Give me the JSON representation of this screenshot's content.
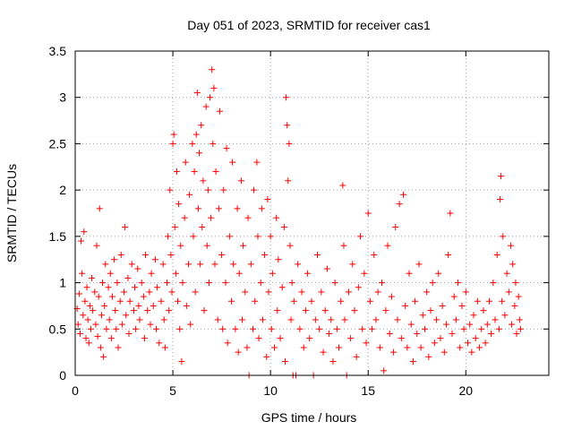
{
  "chart_data": {
    "type": "scatter",
    "title": "Day 051 of 2023, SRMTID for receiver cas1",
    "xlabel": "GPS time / hours",
    "ylabel": "SRMTID / TECUs",
    "xlim": [
      0,
      24.25
    ],
    "ylim": [
      0,
      3.5
    ],
    "xticks": [
      0,
      5,
      10,
      15,
      20
    ],
    "xtick_labels": [
      "0",
      "5",
      "10",
      "15",
      "20"
    ],
    "yticks": [
      0,
      0.5,
      1,
      1.5,
      2,
      2.5,
      3,
      3.5
    ],
    "ytick_labels": [
      "0",
      "0.5",
      "1",
      "1.5",
      "2",
      "2.5",
      "3",
      "3.5"
    ],
    "grid": true,
    "marker": "+",
    "color": "#ff0000",
    "series": [
      {
        "name": "SRMTID",
        "points": [
          [
            0.1,
            0.72
          ],
          [
            0.15,
            0.55
          ],
          [
            0.2,
            0.88
          ],
          [
            0.25,
            0.45
          ],
          [
            0.3,
            1.45
          ],
          [
            0.35,
            1.1
          ],
          [
            0.4,
            0.65
          ],
          [
            0.45,
            1.55
          ],
          [
            0.5,
            0.8
          ],
          [
            0.55,
            0.4
          ],
          [
            0.6,
            0.95
          ],
          [
            0.65,
            0.6
          ],
          [
            0.7,
            0.35
          ],
          [
            0.75,
            0.75
          ],
          [
            0.8,
            0.5
          ],
          [
            0.85,
            1.05
          ],
          [
            0.9,
            0.7
          ],
          [
            1.0,
            0.9
          ],
          [
            1.05,
            0.55
          ],
          [
            1.1,
            1.4
          ],
          [
            1.15,
            0.42
          ],
          [
            1.2,
            0.85
          ],
          [
            1.25,
            1.8
          ],
          [
            1.3,
            0.3
          ],
          [
            1.35,
            0.65
          ],
          [
            1.4,
            1.0
          ],
          [
            1.45,
            0.2
          ],
          [
            1.5,
            0.75
          ],
          [
            1.55,
            1.2
          ],
          [
            1.6,
            0.5
          ],
          [
            1.7,
            0.95
          ],
          [
            1.75,
            0.6
          ],
          [
            1.8,
            1.1
          ],
          [
            1.85,
            0.4
          ],
          [
            1.9,
            0.85
          ],
          [
            2.0,
            1.25
          ],
          [
            2.05,
            0.7
          ],
          [
            2.1,
            0.5
          ],
          [
            2.15,
            1.0
          ],
          [
            2.2,
            0.3
          ],
          [
            2.3,
            0.8
          ],
          [
            2.35,
            1.3
          ],
          [
            2.4,
            0.55
          ],
          [
            2.5,
            0.9
          ],
          [
            2.55,
            1.6
          ],
          [
            2.6,
            0.65
          ],
          [
            2.7,
            1.05
          ],
          [
            2.75,
            0.45
          ],
          [
            2.8,
            0.8
          ],
          [
            2.9,
            1.2
          ],
          [
            3.0,
            0.7
          ],
          [
            3.05,
            0.95
          ],
          [
            3.1,
            0.5
          ],
          [
            3.2,
            1.15
          ],
          [
            3.25,
            0.75
          ],
          [
            3.3,
            0.6
          ],
          [
            3.4,
            1.0
          ],
          [
            3.5,
            0.85
          ],
          [
            3.55,
            0.4
          ],
          [
            3.6,
            1.3
          ],
          [
            3.7,
            0.7
          ],
          [
            3.8,
            0.9
          ],
          [
            3.85,
            0.55
          ],
          [
            3.9,
            1.1
          ],
          [
            4.0,
            0.75
          ],
          [
            4.1,
            1.25
          ],
          [
            4.15,
            0.5
          ],
          [
            4.2,
            0.95
          ],
          [
            4.3,
            0.35
          ],
          [
            4.4,
            0.8
          ],
          [
            4.5,
            1.2
          ],
          [
            4.55,
            0.6
          ],
          [
            4.6,
            0.3
          ],
          [
            4.7,
            1.0
          ],
          [
            4.75,
            1.5
          ],
          [
            4.8,
            0.7
          ],
          [
            4.85,
            2.0
          ],
          [
            4.9,
            1.3
          ],
          [
            4.95,
            0.9
          ],
          [
            5.0,
            2.5
          ],
          [
            5.05,
            2.6
          ],
          [
            5.1,
            1.6
          ],
          [
            5.15,
            1.1
          ],
          [
            5.2,
            2.2
          ],
          [
            5.25,
            0.8
          ],
          [
            5.3,
            1.85
          ],
          [
            5.35,
            0.5
          ],
          [
            5.4,
            1.4
          ],
          [
            5.45,
            0.15
          ],
          [
            5.5,
            1.0
          ],
          [
            5.6,
            1.7
          ],
          [
            5.65,
            2.3
          ],
          [
            5.7,
            0.75
          ],
          [
            5.8,
            1.2
          ],
          [
            5.85,
            1.95
          ],
          [
            5.9,
            0.55
          ],
          [
            6.0,
            2.5
          ],
          [
            6.05,
            1.5
          ],
          [
            6.1,
            2.2
          ],
          [
            6.15,
            0.9
          ],
          [
            6.2,
            2.6
          ],
          [
            6.25,
            3.05
          ],
          [
            6.3,
            1.8
          ],
          [
            6.35,
            2.4
          ],
          [
            6.4,
            1.2
          ],
          [
            6.45,
            2.7
          ],
          [
            6.5,
            1.6
          ],
          [
            6.55,
            2.1
          ],
          [
            6.6,
            0.7
          ],
          [
            6.7,
            2.9
          ],
          [
            6.75,
            1.4
          ],
          [
            6.8,
            2.0
          ],
          [
            6.85,
            1.0
          ],
          [
            6.9,
            3.0
          ],
          [
            6.95,
            1.7
          ],
          [
            7.0,
            3.3
          ],
          [
            7.05,
            2.5
          ],
          [
            7.1,
            3.1
          ],
          [
            7.15,
            1.2
          ],
          [
            7.2,
            2.2
          ],
          [
            7.3,
            0.6
          ],
          [
            7.35,
            1.8
          ],
          [
            7.4,
            2.85
          ],
          [
            7.5,
            1.3
          ],
          [
            7.55,
            0.5
          ],
          [
            7.6,
            2.0
          ],
          [
            7.7,
            1.0
          ],
          [
            7.75,
            2.45
          ],
          [
            7.8,
            0.35
          ],
          [
            7.9,
            1.5
          ],
          [
            8.0,
            0.8
          ],
          [
            8.05,
            2.3
          ],
          [
            8.1,
            1.2
          ],
          [
            8.2,
            0.5
          ],
          [
            8.3,
            1.8
          ],
          [
            8.35,
            0.25
          ],
          [
            8.4,
            1.1
          ],
          [
            8.5,
            2.1
          ],
          [
            8.55,
            0.6
          ],
          [
            8.6,
            1.4
          ],
          [
            8.7,
            0.9
          ],
          [
            8.8,
            0.3
          ],
          [
            8.85,
            1.7
          ],
          [
            8.9,
            0.0
          ],
          [
            9.0,
            1.2
          ],
          [
            9.1,
            0.5
          ],
          [
            9.15,
            2.0
          ],
          [
            9.2,
            0.8
          ],
          [
            9.3,
            2.3
          ],
          [
            9.35,
            1.5
          ],
          [
            9.4,
            0.4
          ],
          [
            9.5,
            1.0
          ],
          [
            9.55,
            1.8
          ],
          [
            9.6,
            0.6
          ],
          [
            9.7,
            1.3
          ],
          [
            9.8,
            0.2
          ],
          [
            9.85,
            1.9
          ],
          [
            9.9,
            0.9
          ],
          [
            10.0,
            1.5
          ],
          [
            10.05,
            0.5
          ],
          [
            10.1,
            1.1
          ],
          [
            10.2,
            0.3
          ],
          [
            10.3,
            1.7
          ],
          [
            10.35,
            0.7
          ],
          [
            10.4,
            1.25
          ],
          [
            10.5,
            0.4
          ],
          [
            10.6,
            0.95
          ],
          [
            10.7,
            1.6
          ],
          [
            10.75,
            0.15
          ],
          [
            10.8,
            3.0
          ],
          [
            10.85,
            2.7
          ],
          [
            10.9,
            2.1
          ],
          [
            10.95,
            2.5
          ],
          [
            11.0,
            1.4
          ],
          [
            11.05,
            0.6
          ],
          [
            11.1,
            1.0
          ],
          [
            11.15,
            0.0
          ],
          [
            11.2,
            0.8
          ],
          [
            11.3,
            0.0
          ],
          [
            11.4,
            1.2
          ],
          [
            11.5,
            0.5
          ],
          [
            11.6,
            0.9
          ],
          [
            11.7,
            0.3
          ],
          [
            11.8,
            0.7
          ],
          [
            11.9,
            1.1
          ],
          [
            12.0,
            0.4
          ],
          [
            12.1,
            0.8
          ],
          [
            12.2,
            0.0
          ],
          [
            12.3,
            0.6
          ],
          [
            12.4,
            1.3
          ],
          [
            12.5,
            0.5
          ],
          [
            12.6,
            0.9
          ],
          [
            12.7,
            0.25
          ],
          [
            12.8,
            0.7
          ],
          [
            12.9,
            1.15
          ],
          [
            13.0,
            0.45
          ],
          [
            13.1,
            0.6
          ],
          [
            13.2,
            0.15
          ],
          [
            13.3,
            1.0
          ],
          [
            13.4,
            0.5
          ],
          [
            13.5,
            0.3
          ],
          [
            13.6,
            0.8
          ],
          [
            13.7,
            2.05
          ],
          [
            13.75,
            1.4
          ],
          [
            13.8,
            0.6
          ],
          [
            13.9,
            0.0
          ],
          [
            14.0,
            0.9
          ],
          [
            14.1,
            0.4
          ],
          [
            14.2,
            1.2
          ],
          [
            14.3,
            0.7
          ],
          [
            14.4,
            0.2
          ],
          [
            14.5,
            0.95
          ],
          [
            14.6,
            1.5
          ],
          [
            14.7,
            0.5
          ],
          [
            14.8,
            1.1
          ],
          [
            14.9,
            0.35
          ],
          [
            15.0,
            1.75
          ],
          [
            15.1,
            0.8
          ],
          [
            15.2,
            0.5
          ],
          [
            15.3,
            1.3
          ],
          [
            15.4,
            0.6
          ],
          [
            15.5,
            0.9
          ],
          [
            15.6,
            0.3
          ],
          [
            15.7,
            1.0
          ],
          [
            15.8,
            0.05
          ],
          [
            15.9,
            0.7
          ],
          [
            16.0,
            1.4
          ],
          [
            16.1,
            0.45
          ],
          [
            16.2,
            0.85
          ],
          [
            16.3,
            0.25
          ],
          [
            16.4,
            1.6
          ],
          [
            16.5,
            0.6
          ],
          [
            16.6,
            1.85
          ],
          [
            16.7,
            0.4
          ],
          [
            16.8,
            1.95
          ],
          [
            16.9,
            0.75
          ],
          [
            17.0,
            0.3
          ],
          [
            17.1,
            1.1
          ],
          [
            17.2,
            0.55
          ],
          [
            17.3,
            0.15
          ],
          [
            17.4,
            0.8
          ],
          [
            17.5,
            0.45
          ],
          [
            17.6,
            1.2
          ],
          [
            17.7,
            0.3
          ],
          [
            17.8,
            0.65
          ],
          [
            17.9,
            0.5
          ],
          [
            18.0,
            0.9
          ],
          [
            18.1,
            0.2
          ],
          [
            18.2,
            0.7
          ],
          [
            18.3,
            1.0
          ],
          [
            18.4,
            0.35
          ],
          [
            18.5,
            0.6
          ],
          [
            18.6,
            1.1
          ],
          [
            18.7,
            0.4
          ],
          [
            18.8,
            0.75
          ],
          [
            18.9,
            0.25
          ],
          [
            19.0,
            0.55
          ],
          [
            19.1,
            1.3
          ],
          [
            19.2,
            1.75
          ],
          [
            19.3,
            0.45
          ],
          [
            19.4,
            0.85
          ],
          [
            19.5,
            0.6
          ],
          [
            19.6,
            1.0
          ],
          [
            19.7,
            0.3
          ],
          [
            19.8,
            0.75
          ],
          [
            19.9,
            0.5
          ],
          [
            20.0,
            0.9
          ],
          [
            20.1,
            0.35
          ],
          [
            20.2,
            0.55
          ],
          [
            20.3,
            0.25
          ],
          [
            20.4,
            0.65
          ],
          [
            20.5,
            0.4
          ],
          [
            20.6,
            0.8
          ],
          [
            20.7,
            0.3
          ],
          [
            20.8,
            0.5
          ],
          [
            20.9,
            0.7
          ],
          [
            21.0,
            0.35
          ],
          [
            21.1,
            0.55
          ],
          [
            21.2,
            0.8
          ],
          [
            21.3,
            0.45
          ],
          [
            21.4,
            1.0
          ],
          [
            21.5,
            0.6
          ],
          [
            21.6,
            1.3
          ],
          [
            21.7,
            0.5
          ],
          [
            21.75,
            1.9
          ],
          [
            21.8,
            2.15
          ],
          [
            21.85,
            0.8
          ],
          [
            21.9,
            1.5
          ],
          [
            22.0,
            0.65
          ],
          [
            22.1,
            1.1
          ],
          [
            22.2,
            0.9
          ],
          [
            22.3,
            1.4
          ],
          [
            22.35,
            0.55
          ],
          [
            22.4,
            1.2
          ],
          [
            22.5,
            0.75
          ],
          [
            22.55,
            1.0
          ],
          [
            22.6,
            0.45
          ],
          [
            22.7,
            0.85
          ],
          [
            22.75,
            0.6
          ],
          [
            22.8,
            0.5
          ]
        ]
      }
    ]
  }
}
